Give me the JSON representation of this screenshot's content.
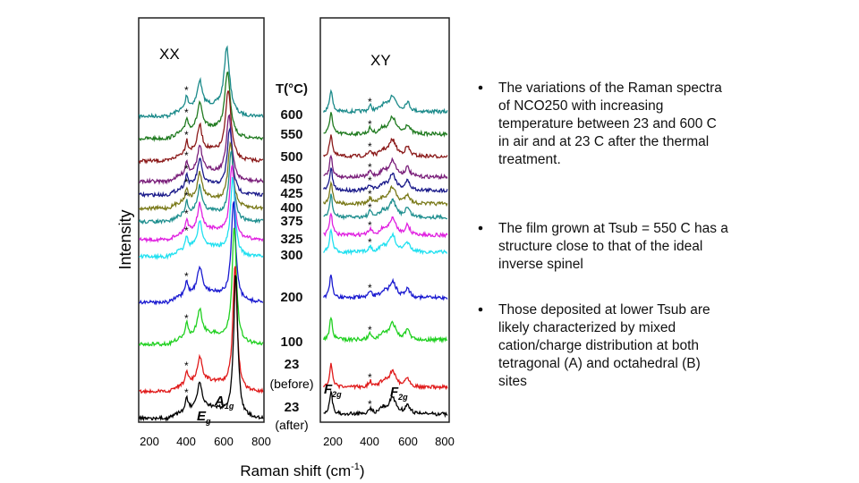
{
  "figure": {
    "panels": [
      "XX",
      "XY"
    ],
    "temperature_header": "T(°C)",
    "temperatures": [
      "600",
      "550",
      "500",
      "450",
      "425",
      "400",
      "375",
      "325",
      "300",
      "200",
      "100",
      "23",
      "(before)",
      "23",
      "(after)"
    ],
    "y_label": "Intensity",
    "x_label": "Raman shift (cm",
    "x_label_sup": "-1",
    "x_label_end": ")",
    "x_ticks": [
      "200",
      "400",
      "600",
      "800"
    ],
    "marker": "*",
    "annotations": [
      {
        "main": "E",
        "sub": "g"
      },
      {
        "main": "A",
        "sub": "1g"
      },
      {
        "main": "F",
        "sub": "2g"
      },
      {
        "main": "F",
        "sub": "2g"
      }
    ]
  },
  "bullets": [
    [
      "The variations of the Raman spectra",
      "of NCO250 with increasing",
      "temperature between 23 and 600 C",
      "in air and at 23 C after the thermal",
      "treatment."
    ],
    [
      "The film grown at Tsub = 550 C has a",
      "structure close to that of the ideal",
      "inverse spinel"
    ],
    [
      "Those deposited at lower Tsub are",
      "likely characterized by mixed",
      "cation/charge distribution at both",
      "tetragonal (A) and octahedral (B)",
      "sites"
    ]
  ]
}
